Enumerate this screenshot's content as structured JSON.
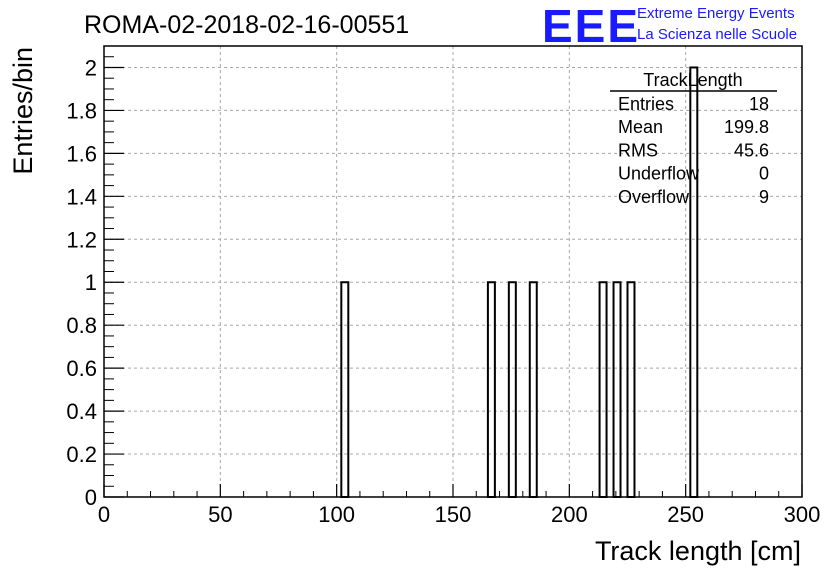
{
  "chart_data": {
    "type": "bar",
    "title": "ROMA-02-2018-02-16-00551",
    "xlabel": "Track length [cm]",
    "ylabel": "Entries/bin",
    "xlim": [
      0,
      300
    ],
    "ylim": [
      0,
      2.1
    ],
    "x_ticks": [
      "0",
      "50",
      "100",
      "150",
      "200",
      "250",
      "300"
    ],
    "y_ticks": [
      "0",
      "0.2",
      "0.4",
      "0.6",
      "0.8",
      "1",
      "1.2",
      "1.4",
      "1.6",
      "1.8",
      "2"
    ],
    "grid": true,
    "bin_width": 3,
    "bins": [
      {
        "x_low": 102,
        "count": 1
      },
      {
        "x_low": 165,
        "count": 1
      },
      {
        "x_low": 174,
        "count": 1
      },
      {
        "x_low": 183,
        "count": 1
      },
      {
        "x_low": 213,
        "count": 1
      },
      {
        "x_low": 219,
        "count": 1
      },
      {
        "x_low": 225,
        "count": 1
      },
      {
        "x_low": 252,
        "count": 2
      }
    ]
  },
  "stats_box": {
    "title": "TrackLength",
    "rows": [
      {
        "label": "Entries",
        "value": "18"
      },
      {
        "label": "Mean",
        "value": "199.8"
      },
      {
        "label": "RMS",
        "value": "45.6"
      },
      {
        "label": "Underflow",
        "value": "0"
      },
      {
        "label": "Overflow",
        "value": "9"
      }
    ]
  },
  "logo": {
    "mark": "EEE",
    "line1": "Extreme Energy Events",
    "line2": "La Scienza nelle Scuole",
    "color": "#1a1aff"
  }
}
